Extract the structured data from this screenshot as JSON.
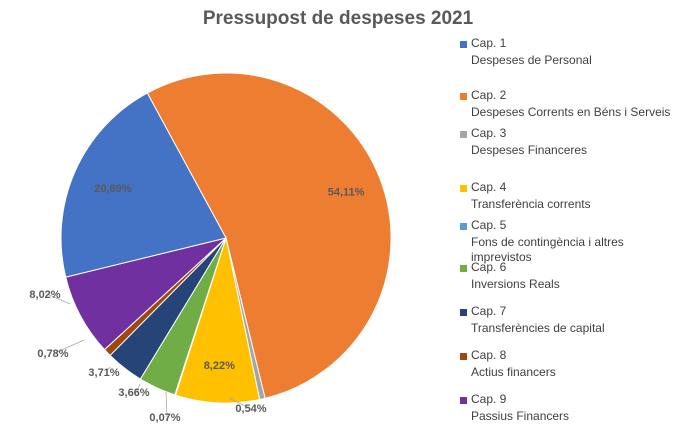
{
  "chart_data": {
    "type": "pie",
    "title": "Pressupost de despeses 2021",
    "legend_position": "right",
    "slices": [
      {
        "cap": "Cap. 2",
        "name": "Despeses Corrents en Béns i Serveis",
        "value": 54.11,
        "label": "54,11%",
        "color": "#ED7D31"
      },
      {
        "cap": "Cap. 3",
        "name": "Despeses Financeres",
        "value": 0.54,
        "label": "0,54%",
        "color": "#A5A5A5"
      },
      {
        "cap": "Cap. 4",
        "name": "Transferència corrents",
        "value": 8.22,
        "label": "8,22%",
        "color": "#FFC000"
      },
      {
        "cap": "Cap. 5",
        "name": "Fons de contingència i altres imprevistos",
        "value": 0.07,
        "label": "0,07%",
        "color": "#5B9BD5"
      },
      {
        "cap": "Cap. 6",
        "name": "Inversions Reals",
        "value": 3.66,
        "label": "3,66%",
        "color": "#70AD47"
      },
      {
        "cap": "Cap. 7",
        "name": "Transferències de capital",
        "value": 3.71,
        "label": "3,71%",
        "color": "#264478"
      },
      {
        "cap": "Cap. 8",
        "name": "Actius financers",
        "value": 0.78,
        "label": "0,78%",
        "color": "#9E480E"
      },
      {
        "cap": "Cap. 9",
        "name": "Passius Financers",
        "value": 8.02,
        "label": "8,02%",
        "color": "#7030A0"
      },
      {
        "cap": "Cap. 1",
        "name": "Despeses de Personal",
        "value": 20.89,
        "label": "20,89%",
        "color": "#4472C4"
      }
    ],
    "legend_order": [
      "Cap. 1",
      "Cap. 2",
      "Cap. 3",
      "Cap. 4",
      "Cap. 5",
      "Cap. 6",
      "Cap. 7",
      "Cap. 8",
      "Cap. 9"
    ]
  }
}
